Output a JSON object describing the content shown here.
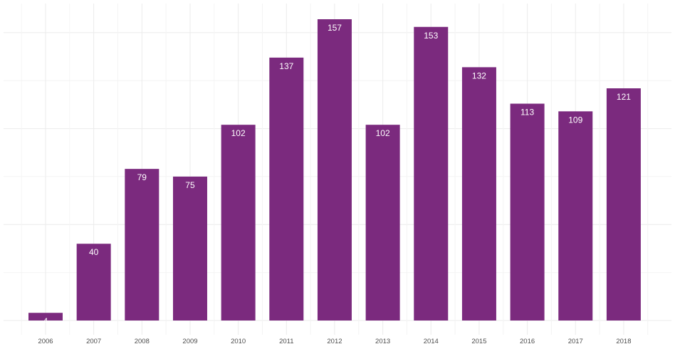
{
  "chart_data": {
    "type": "bar",
    "categories": [
      "2006",
      "2007",
      "2008",
      "2009",
      "2010",
      "2011",
      "2012",
      "2013",
      "2014",
      "2015",
      "2016",
      "2017",
      "2018"
    ],
    "values": [
      4,
      40,
      79,
      75,
      102,
      137,
      157,
      102,
      153,
      132,
      113,
      109,
      121
    ],
    "title": "",
    "xlabel": "",
    "ylabel": "",
    "ylim": [
      0,
      165
    ],
    "grid": true,
    "bar_color": "#7b2a7e",
    "label_color": "#ffffff",
    "legend": "none"
  }
}
